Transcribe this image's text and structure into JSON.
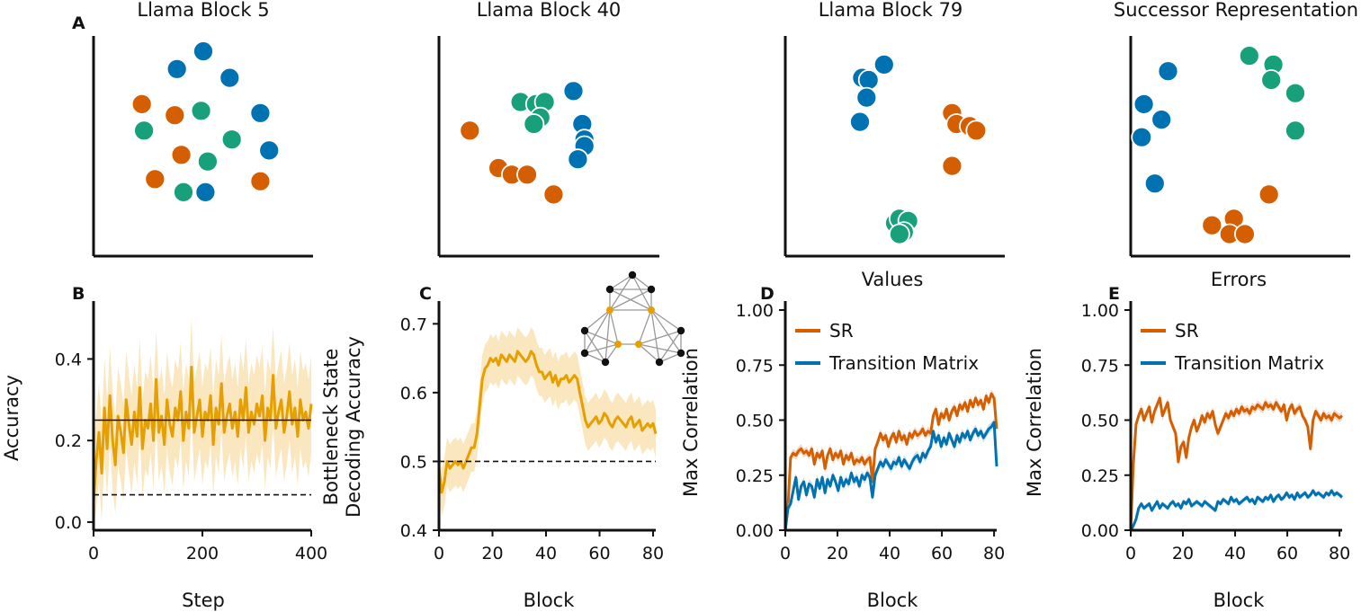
{
  "figure_labels": {
    "a": "A",
    "b": "B",
    "c": "C",
    "d": "D",
    "e": "E"
  },
  "colors": {
    "orange": "#d55e00",
    "blue": "#0072b2",
    "green": "#17a07a",
    "gold": "#e69f00",
    "gold_band": "#f6d48c",
    "black": "#111111"
  },
  "chart_data": [
    {
      "id": "scatter_block5",
      "type": "scatter",
      "title": "Llama Block 5",
      "xlabel": "",
      "ylabel": "",
      "xlim": [
        0,
        10
      ],
      "ylim": [
        0,
        10
      ],
      "series": [
        {
          "name": "orange",
          "color": "orange",
          "points": [
            [
              2.2,
              6.9
            ],
            [
              3.7,
              6.4
            ],
            [
              4.0,
              4.6
            ],
            [
              2.8,
              3.5
            ],
            [
              7.6,
              3.4
            ],
            [
              5.0,
              9.3
            ]
          ]
        },
        {
          "name": "blue",
          "color": "blue",
          "points": [
            [
              3.8,
              8.5
            ],
            [
              6.2,
              8.1
            ],
            [
              7.6,
              6.5
            ],
            [
              8.0,
              4.8
            ],
            [
              5.1,
              2.9
            ],
            [
              5.0,
              9.3
            ]
          ]
        },
        {
          "name": "green",
          "color": "green",
          "points": [
            [
              2.3,
              5.7
            ],
            [
              4.9,
              6.6
            ],
            [
              6.3,
              5.3
            ],
            [
              5.2,
              4.3
            ],
            [
              4.1,
              2.9
            ]
          ]
        }
      ]
    },
    {
      "id": "scatter_block40",
      "type": "scatter",
      "title": "Llama Block 40",
      "xlabel": "",
      "ylabel": "",
      "xlim": [
        0,
        10
      ],
      "ylim": [
        0,
        10
      ],
      "series": [
        {
          "name": "orange",
          "color": "orange",
          "points": [
            [
              1.4,
              5.7
            ],
            [
              2.7,
              4.0
            ],
            [
              3.3,
              3.7
            ],
            [
              4.0,
              3.7
            ],
            [
              5.2,
              2.8
            ]
          ]
        },
        {
          "name": "green",
          "color": "green",
          "points": [
            [
              3.7,
              7.0
            ],
            [
              4.4,
              6.9
            ],
            [
              4.8,
              7.0
            ],
            [
              4.6,
              6.3
            ],
            [
              4.3,
              6.0
            ]
          ]
        },
        {
          "name": "blue",
          "color": "blue",
          "points": [
            [
              6.1,
              7.5
            ],
            [
              6.5,
              6.0
            ],
            [
              6.6,
              5.3
            ],
            [
              6.6,
              5.0
            ],
            [
              6.3,
              4.4
            ]
          ]
        }
      ]
    },
    {
      "id": "scatter_block79",
      "type": "scatter",
      "title": "Llama Block 79",
      "xlabel": "",
      "ylabel": "",
      "xlim": [
        0,
        10
      ],
      "ylim": [
        0,
        10
      ],
      "series": [
        {
          "name": "blue",
          "color": "blue",
          "points": [
            [
              3.5,
              8.1
            ],
            [
              3.8,
              8.0
            ],
            [
              4.5,
              8.7
            ],
            [
              3.7,
              7.2
            ],
            [
              3.4,
              6.1
            ]
          ]
        },
        {
          "name": "orange",
          "color": "orange",
          "points": [
            [
              7.6,
              6.5
            ],
            [
              7.8,
              6.0
            ],
            [
              8.4,
              5.9
            ],
            [
              8.7,
              5.7
            ],
            [
              7.6,
              4.1
            ]
          ]
        },
        {
          "name": "green",
          "color": "green",
          "points": [
            [
              5.0,
              1.5
            ],
            [
              5.2,
              1.7
            ],
            [
              5.6,
              1.6
            ],
            [
              5.4,
              1.1
            ],
            [
              5.2,
              1.0
            ]
          ]
        }
      ]
    },
    {
      "id": "scatter_sr",
      "type": "scatter",
      "title": "Successor Representation",
      "xlabel": "",
      "ylabel": "",
      "xlim": [
        0,
        10
      ],
      "ylim": [
        0,
        10
      ],
      "series": [
        {
          "name": "blue",
          "color": "blue",
          "points": [
            [
              1.7,
              8.4
            ],
            [
              0.6,
              6.9
            ],
            [
              1.4,
              6.2
            ],
            [
              0.5,
              5.4
            ],
            [
              1.1,
              3.3
            ]
          ]
        },
        {
          "name": "green",
          "color": "green",
          "points": [
            [
              5.4,
              9.1
            ],
            [
              6.5,
              8.7
            ],
            [
              6.4,
              8.0
            ],
            [
              7.5,
              7.4
            ],
            [
              7.5,
              5.7
            ]
          ]
        },
        {
          "name": "orange",
          "color": "orange",
          "points": [
            [
              6.3,
              2.8
            ],
            [
              3.7,
              1.4
            ],
            [
              4.7,
              1.7
            ],
            [
              4.5,
              1.0
            ],
            [
              5.2,
              1.0
            ]
          ]
        }
      ]
    },
    {
      "id": "panel_b",
      "type": "line",
      "title": "",
      "xlabel": "Step",
      "ylabel": "Accuracy",
      "xlim": [
        0,
        400
      ],
      "ylim": [
        -0.02,
        0.52
      ],
      "xticks": [
        0,
        200,
        400
      ],
      "xtick_labels": [
        "0",
        "200",
        "400"
      ],
      "yticks": [
        0.0,
        0.2,
        0.4
      ],
      "ytick_labels": [
        "0.0",
        "0.2",
        "0.4"
      ],
      "hlines": [
        {
          "y": 0.25,
          "style": "solid",
          "color": "black"
        },
        {
          "y": 0.067,
          "style": "dashed",
          "color": "black"
        }
      ],
      "series": [
        {
          "name": "accuracy",
          "color": "gold",
          "band": 0.12,
          "band_color": "gold_band",
          "values": [
            0.05,
            0.15,
            0.22,
            0.12,
            0.28,
            0.18,
            0.31,
            0.2,
            0.14,
            0.26,
            0.22,
            0.17,
            0.3,
            0.24,
            0.19,
            0.27,
            0.21,
            0.33,
            0.18,
            0.25,
            0.23,
            0.29,
            0.2,
            0.35,
            0.22,
            0.26,
            0.19,
            0.3,
            0.24,
            0.21,
            0.28,
            0.25,
            0.32,
            0.2,
            0.27,
            0.23,
            0.38,
            0.22,
            0.26,
            0.3,
            0.21,
            0.27,
            0.25,
            0.31,
            0.19,
            0.28,
            0.24,
            0.34,
            0.22,
            0.26,
            0.29,
            0.23,
            0.27,
            0.21,
            0.3,
            0.25,
            0.33,
            0.22,
            0.27,
            0.24,
            0.29,
            0.26,
            0.31,
            0.2,
            0.28,
            0.25,
            0.36,
            0.23,
            0.27,
            0.3,
            0.22,
            0.26,
            0.32,
            0.24,
            0.28,
            0.21,
            0.3,
            0.25,
            0.27,
            0.23,
            0.29
          ]
        }
      ]
    },
    {
      "id": "panel_c",
      "type": "line",
      "title": "",
      "xlabel": "Block",
      "ylabel": "Bottleneck State",
      "ylabel2": "Decoding Accuracy",
      "xlim": [
        0,
        81
      ],
      "ylim": [
        0.4,
        0.72
      ],
      "xticks": [
        0,
        20,
        40,
        60,
        80
      ],
      "xtick_labels": [
        "0",
        "20",
        "40",
        "60",
        "80"
      ],
      "yticks": [
        0.4,
        0.5,
        0.6,
        0.7
      ],
      "ytick_labels": [
        "0.4",
        "0.5",
        "0.6",
        "0.7"
      ],
      "hlines": [
        {
          "y": 0.5,
          "style": "dashed",
          "color": "black"
        }
      ],
      "series": [
        {
          "name": "decoding",
          "color": "gold",
          "band": 0.035,
          "band_color": "gold_band",
          "values": [
            0.49,
            0.455,
            0.47,
            0.5,
            0.49,
            0.495,
            0.5,
            0.495,
            0.5,
            0.49,
            0.5,
            0.51,
            0.52,
            0.52,
            0.54,
            0.58,
            0.62,
            0.635,
            0.64,
            0.65,
            0.645,
            0.65,
            0.64,
            0.655,
            0.65,
            0.645,
            0.655,
            0.65,
            0.645,
            0.66,
            0.655,
            0.65,
            0.645,
            0.65,
            0.66,
            0.655,
            0.64,
            0.63,
            0.63,
            0.62,
            0.625,
            0.63,
            0.615,
            0.625,
            0.61,
            0.62,
            0.62,
            0.625,
            0.615,
            0.62,
            0.625,
            0.62,
            0.6,
            0.58,
            0.56,
            0.55,
            0.555,
            0.56,
            0.565,
            0.555,
            0.56,
            0.57,
            0.565,
            0.555,
            0.55,
            0.56,
            0.565,
            0.56,
            0.555,
            0.55,
            0.56,
            0.565,
            0.55,
            0.555,
            0.56,
            0.545,
            0.55,
            0.555,
            0.55,
            0.555,
            0.54
          ]
        }
      ]
    },
    {
      "id": "panel_d",
      "type": "line",
      "title": "Values",
      "xlabel": "Block",
      "ylabel": "Max Correlation",
      "xlim": [
        0,
        81
      ],
      "ylim": [
        0,
        1
      ],
      "xticks": [
        0,
        20,
        40,
        60,
        80
      ],
      "xtick_labels": [
        "0",
        "20",
        "40",
        "60",
        "80"
      ],
      "yticks": [
        0,
        0.25,
        0.5,
        0.75,
        1.0
      ],
      "ytick_labels": [
        "0.00",
        "0.25",
        "0.50",
        "0.75",
        "1.00"
      ],
      "legend": [
        "SR",
        "Transition Matrix"
      ],
      "series": [
        {
          "name": "SR",
          "color": "orange",
          "band": 0.02,
          "band_color": "#f2b595",
          "values": [
            0,
            0.1,
            0.33,
            0.35,
            0.34,
            0.36,
            0.37,
            0.35,
            0.36,
            0.34,
            0.37,
            0.3,
            0.35,
            0.33,
            0.36,
            0.28,
            0.34,
            0.37,
            0.32,
            0.35,
            0.33,
            0.36,
            0.3,
            0.34,
            0.32,
            0.35,
            0.3,
            0.32,
            0.31,
            0.33,
            0.3,
            0.32,
            0.33,
            0.22,
            0.37,
            0.4,
            0.44,
            0.41,
            0.43,
            0.38,
            0.42,
            0.44,
            0.4,
            0.45,
            0.41,
            0.43,
            0.39,
            0.44,
            0.42,
            0.45,
            0.43,
            0.44,
            0.46,
            0.43,
            0.45,
            0.44,
            0.52,
            0.55,
            0.48,
            0.53,
            0.51,
            0.55,
            0.5,
            0.54,
            0.56,
            0.52,
            0.57,
            0.55,
            0.58,
            0.54,
            0.59,
            0.56,
            0.6,
            0.57,
            0.59,
            0.55,
            0.61,
            0.58,
            0.62,
            0.6,
            0.46
          ]
        },
        {
          "name": "Transition Matrix",
          "color": "blue",
          "band": 0.02,
          "band_color": "#9fc5e0",
          "values": [
            0,
            0.1,
            0.12,
            0.18,
            0.24,
            0.14,
            0.2,
            0.22,
            0.16,
            0.21,
            0.2,
            0.15,
            0.23,
            0.19,
            0.24,
            0.17,
            0.23,
            0.2,
            0.25,
            0.22,
            0.18,
            0.24,
            0.2,
            0.23,
            0.21,
            0.26,
            0.22,
            0.24,
            0.2,
            0.25,
            0.23,
            0.26,
            0.24,
            0.15,
            0.25,
            0.28,
            0.31,
            0.29,
            0.32,
            0.3,
            0.28,
            0.31,
            0.3,
            0.33,
            0.29,
            0.32,
            0.3,
            0.28,
            0.31,
            0.33,
            0.34,
            0.31,
            0.35,
            0.33,
            0.36,
            0.38,
            0.45,
            0.4,
            0.43,
            0.38,
            0.42,
            0.39,
            0.44,
            0.41,
            0.38,
            0.43,
            0.4,
            0.44,
            0.42,
            0.45,
            0.41,
            0.44,
            0.46,
            0.43,
            0.45,
            0.42,
            0.44,
            0.46,
            0.47,
            0.49,
            0.29
          ]
        }
      ]
    },
    {
      "id": "panel_e",
      "type": "line",
      "title": "Errors",
      "xlabel": "Block",
      "ylabel": "Max Correlation",
      "xlim": [
        0,
        81
      ],
      "ylim": [
        0,
        1
      ],
      "xticks": [
        0,
        20,
        40,
        60,
        80
      ],
      "xtick_labels": [
        "0",
        "20",
        "40",
        "60",
        "80"
      ],
      "yticks": [
        0,
        0.25,
        0.5,
        0.75,
        1.0
      ],
      "ytick_labels": [
        "0.00",
        "0.25",
        "0.50",
        "0.75",
        "1.00"
      ],
      "legend": [
        "SR",
        "Transition Matrix"
      ],
      "series": [
        {
          "name": "SR",
          "color": "orange",
          "band": 0.02,
          "band_color": "#f2b595",
          "values": [
            0,
            0.3,
            0.48,
            0.52,
            0.55,
            0.5,
            0.53,
            0.56,
            0.49,
            0.54,
            0.57,
            0.6,
            0.52,
            0.55,
            0.58,
            0.5,
            0.47,
            0.44,
            0.31,
            0.38,
            0.4,
            0.33,
            0.42,
            0.47,
            0.5,
            0.45,
            0.48,
            0.52,
            0.49,
            0.53,
            0.51,
            0.54,
            0.48,
            0.44,
            0.47,
            0.5,
            0.53,
            0.51,
            0.54,
            0.52,
            0.55,
            0.53,
            0.56,
            0.54,
            0.55,
            0.53,
            0.56,
            0.55,
            0.57,
            0.56,
            0.55,
            0.58,
            0.56,
            0.57,
            0.55,
            0.58,
            0.56,
            0.54,
            0.57,
            0.5,
            0.55,
            0.57,
            0.53,
            0.55,
            0.56,
            0.52,
            0.5,
            0.47,
            0.37,
            0.5,
            0.54,
            0.52,
            0.5,
            0.53,
            0.51,
            0.52,
            0.5,
            0.53,
            0.52,
            0.51,
            0.52
          ]
        },
        {
          "name": "Transition Matrix",
          "color": "blue",
          "band": 0.012,
          "band_color": "#9fc5e0",
          "values": [
            0,
            0.02,
            0.05,
            0.1,
            0.12,
            0.1,
            0.11,
            0.12,
            0.09,
            0.11,
            0.13,
            0.1,
            0.12,
            0.11,
            0.1,
            0.12,
            0.13,
            0.11,
            0.12,
            0.1,
            0.13,
            0.12,
            0.14,
            0.11,
            0.12,
            0.13,
            0.12,
            0.11,
            0.13,
            0.12,
            0.11,
            0.1,
            0.09,
            0.13,
            0.12,
            0.14,
            0.13,
            0.12,
            0.15,
            0.13,
            0.14,
            0.12,
            0.13,
            0.14,
            0.15,
            0.13,
            0.14,
            0.12,
            0.15,
            0.14,
            0.13,
            0.15,
            0.14,
            0.16,
            0.13,
            0.15,
            0.16,
            0.14,
            0.15,
            0.17,
            0.15,
            0.16,
            0.14,
            0.17,
            0.15,
            0.16,
            0.17,
            0.15,
            0.16,
            0.18,
            0.16,
            0.17,
            0.16,
            0.15,
            0.17,
            0.16,
            0.18,
            0.16,
            0.17,
            0.16,
            0.15
          ]
        }
      ]
    }
  ]
}
